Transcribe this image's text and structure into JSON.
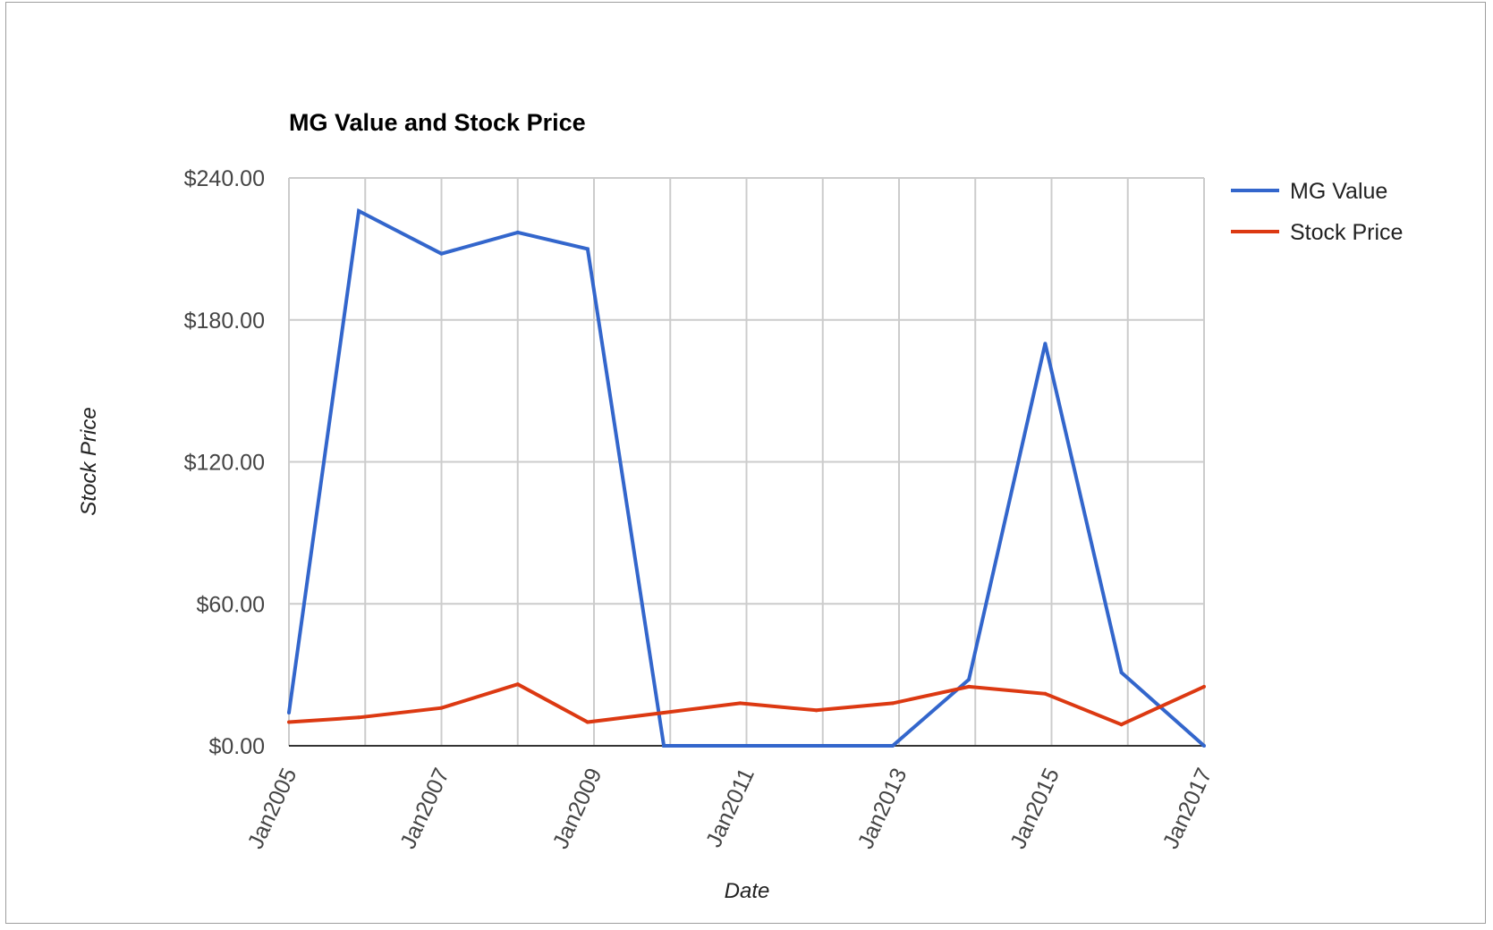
{
  "chart_data": {
    "type": "line",
    "title": "MG Value and Stock Price",
    "xlabel": "Date",
    "ylabel": "Stock Price",
    "x_ticks": [
      "Jan2005",
      "Jan2007",
      "Jan2009",
      "Jan2011",
      "Jan2013",
      "Jan2015",
      "Jan2017"
    ],
    "y_ticks": [
      "$0.00",
      "$60.00",
      "$120.00",
      "$180.00",
      "$240.00"
    ],
    "ylim": [
      0,
      240
    ],
    "xlim": [
      "2005-01",
      "2017-01"
    ],
    "grid": true,
    "legend_position": "right",
    "x": [
      "2005-01",
      "2005-12",
      "2007-01",
      "2008-01",
      "2008-12",
      "2009-12",
      "2010-12",
      "2011-12",
      "2012-12",
      "2013-12",
      "2014-12",
      "2015-12",
      "2017-01"
    ],
    "series": [
      {
        "name": "MG Value",
        "color": "#3366cc",
        "values": [
          14,
          226,
          208,
          217,
          210,
          0,
          0,
          0,
          0,
          28,
          170,
          31,
          0
        ]
      },
      {
        "name": "Stock Price",
        "color": "#dc3912",
        "values": [
          10,
          12,
          16,
          26,
          10,
          14,
          18,
          15,
          18,
          25,
          22,
          9,
          25
        ]
      }
    ]
  }
}
